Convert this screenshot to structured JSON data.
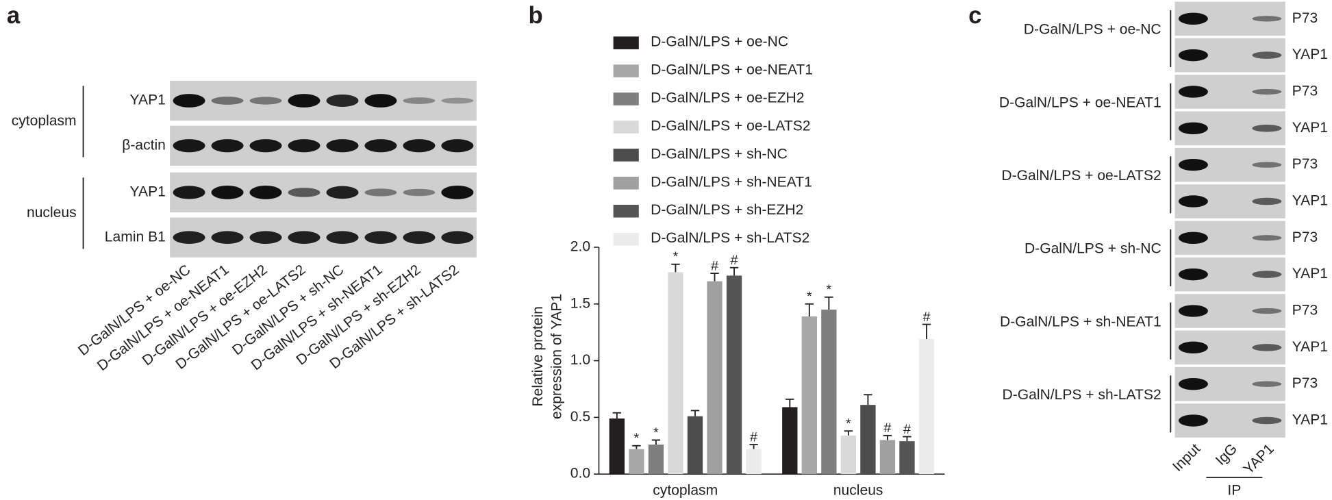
{
  "panel_labels": [
    "a",
    "b",
    "c"
  ],
  "panel_a": {
    "groups": [
      {
        "label": "cytoplasm",
        "rows": [
          "YAP1",
          "β-actin"
        ]
      },
      {
        "label": "nucleus",
        "rows": [
          "YAP1",
          "Lamin B1"
        ]
      }
    ],
    "lanes": [
      "D-GalN/LPS + oe-NC",
      "D-GalN/LPS + oe-NEAT1",
      "D-GalN/LPS + oe-EZH2",
      "D-GalN/LPS + oe-LATS2",
      "D-GalN/LPS + sh-NC",
      "D-GalN/LPS + sh-NEAT1",
      "D-GalN/LPS + sh-EZH2",
      "D-GalN/LPS + sh-LATS2"
    ]
  },
  "chart_data": {
    "type": "bar",
    "y_label": [
      "Relative protein",
      "expression of YAP1"
    ],
    "categories": [
      "cytoplasm",
      "nucleus"
    ],
    "ylim": [
      0,
      2
    ],
    "yticks": [
      {
        "value": 0,
        "label": "0.0"
      },
      {
        "value": 0.5,
        "label": "0.5"
      },
      {
        "value": 1,
        "label": "1.0"
      },
      {
        "value": 1.5,
        "label": "1.5"
      },
      {
        "value": 2,
        "label": "2.0"
      }
    ],
    "series": [
      {
        "name": "D-GalN/LPS + oe-NC",
        "color": "#231f20",
        "values": [
          0.49,
          0.59
        ],
        "errors": [
          0.05,
          0.07
        ],
        "markers": [
          null,
          null
        ]
      },
      {
        "name": "D-GalN/LPS + oe-NEAT1",
        "color": "#a7a7a7",
        "values": [
          0.22,
          1.39
        ],
        "errors": [
          0.03,
          0.11
        ],
        "markers": [
          "*",
          "*"
        ]
      },
      {
        "name": "D-GalN/LPS + oe-EZH2",
        "color": "#7f7f7f",
        "values": [
          0.26,
          1.45
        ],
        "errors": [
          0.04,
          0.11
        ],
        "markers": [
          "*",
          "*"
        ]
      },
      {
        "name": "D-GalN/LPS + oe-LATS2",
        "color": "#d9d9d9",
        "values": [
          1.78,
          0.34
        ],
        "errors": [
          0.07,
          0.04
        ],
        "markers": [
          "*",
          "*"
        ]
      },
      {
        "name": "D-GalN/LPS + sh-NC",
        "color": "#4d4d4d",
        "values": [
          0.51,
          0.61
        ],
        "errors": [
          0.05,
          0.09
        ],
        "markers": [
          null,
          null
        ]
      },
      {
        "name": "D-GalN/LPS + sh-NEAT1",
        "color": "#a0a0a0",
        "values": [
          1.7,
          0.3
        ],
        "errors": [
          0.07,
          0.04
        ],
        "markers": [
          "#",
          "#"
        ]
      },
      {
        "name": "D-GalN/LPS + sh-EZH2",
        "color": "#555555",
        "values": [
          1.75,
          0.29
        ],
        "errors": [
          0.07,
          0.04
        ],
        "markers": [
          "#",
          "#"
        ]
      },
      {
        "name": "D-GalN/LPS + sh-LATS2",
        "color": "#ebebeb",
        "values": [
          0.22,
          1.19
        ],
        "errors": [
          0.04,
          0.13
        ],
        "markers": [
          "#",
          "#"
        ]
      }
    ]
  },
  "panel_c": {
    "groups": [
      {
        "label": "D-GalN/LPS + oe-NC",
        "rows": [
          "P73",
          "YAP1"
        ]
      },
      {
        "label": "D-GalN/LPS + oe-NEAT1",
        "rows": [
          "P73",
          "YAP1"
        ]
      },
      {
        "label": "D-GalN/LPS + oe-LATS2",
        "rows": [
          "P73",
          "YAP1"
        ]
      },
      {
        "label": "D-GalN/LPS + sh-NC",
        "rows": [
          "P73",
          "YAP1"
        ]
      },
      {
        "label": "D-GalN/LPS + sh-NEAT1",
        "rows": [
          "P73",
          "YAP1"
        ]
      },
      {
        "label": "D-GalN/LPS + sh-LATS2",
        "rows": [
          "P73",
          "YAP1"
        ]
      }
    ],
    "lanes": [
      "Input",
      "IgG",
      "YAP1"
    ],
    "ip_label": "IP"
  }
}
